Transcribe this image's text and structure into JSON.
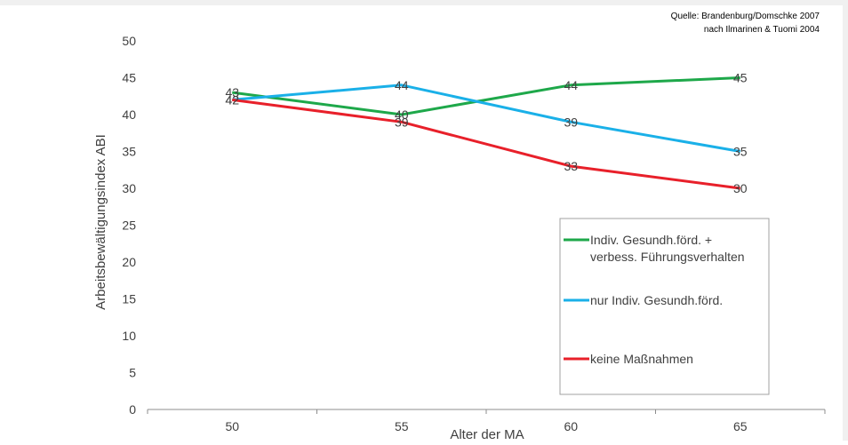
{
  "source_note": {
    "line1": "Quelle: Brandenburg/Domschke 2007",
    "line2": "nach Ilmarinen & Tuomi 2004"
  },
  "colors": {
    "green": "#1ea84a",
    "blue": "#1ab0e8",
    "red": "#e8202a",
    "axis": "#8c8c8c",
    "text": "#404040",
    "frame_bg": "#f0f0f0"
  },
  "chart_data": {
    "type": "line",
    "title": "",
    "xlabel": "Alter der MA",
    "ylabel": "Arbeitsbewältigungsindex ABI",
    "categories": [
      "50",
      "55",
      "60",
      "65"
    ],
    "ylim": [
      0,
      50
    ],
    "yticks": [
      0,
      5,
      10,
      15,
      20,
      25,
      30,
      35,
      40,
      45,
      50
    ],
    "grid": false,
    "legend_position": "right",
    "series": [
      {
        "name": "Indiv. Gesundh.förd. + verbess. Führungsverhalten",
        "name_lines": [
          "Indiv. Gesundh.förd. +",
          "verbess. Führungsverhalten"
        ],
        "color": "#1ea84a",
        "values": [
          43,
          40,
          44,
          45
        ]
      },
      {
        "name": "nur Indiv. Gesundh.förd.",
        "name_lines": [
          "nur Indiv. Gesundh.förd."
        ],
        "color": "#1ab0e8",
        "values": [
          42,
          44,
          39,
          35
        ]
      },
      {
        "name": "keine Maßnahmen",
        "name_lines": [
          "keine Maßnahmen"
        ],
        "color": "#e8202a",
        "values": [
          42,
          39,
          33,
          30
        ]
      }
    ]
  }
}
